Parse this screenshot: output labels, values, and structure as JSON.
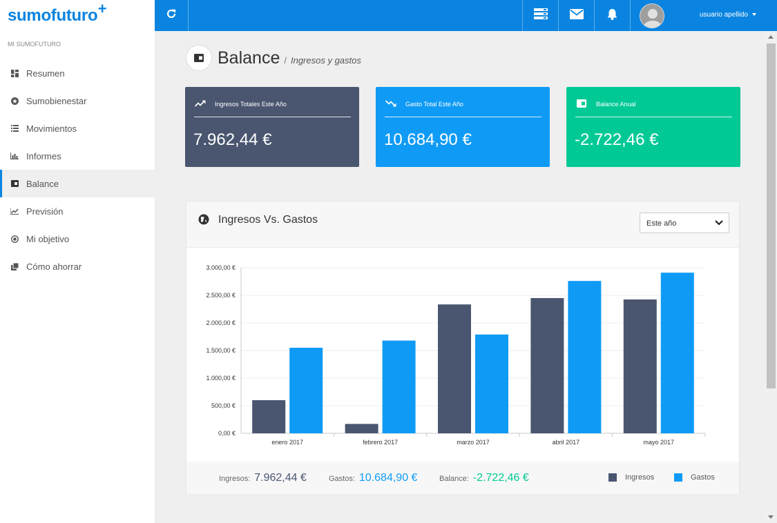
{
  "app": {
    "logo": "sumofuturo",
    "logo_plus": "+",
    "accent": "#0a84e0"
  },
  "sidebar": {
    "section_label": "MI SUMOFUTURO",
    "items": [
      {
        "label": "Resumen",
        "icon": "dashboard-icon"
      },
      {
        "label": "Sumobienestar",
        "icon": "star-circle-icon"
      },
      {
        "label": "Movimientos",
        "icon": "list-icon"
      },
      {
        "label": "Informes",
        "icon": "bar-chart-icon"
      },
      {
        "label": "Balance",
        "icon": "wallet-icon",
        "active": true
      },
      {
        "label": "Previsión",
        "icon": "line-chart-icon"
      },
      {
        "label": "Mi objetivo",
        "icon": "target-icon"
      },
      {
        "label": "Cómo ahorrar",
        "icon": "copy-icon"
      }
    ]
  },
  "topbar": {
    "user": "usuario apellido"
  },
  "page": {
    "title": "Balance",
    "separator": "/",
    "subtitle": "Ingresos y gastos"
  },
  "cards": [
    {
      "label": "Ingresos Totales Este Año",
      "value": "7.962,44 €",
      "color": "#4a5670",
      "icon": "trending-up-icon"
    },
    {
      "label": "Gasto Total Este Año",
      "value": "10.684,90 €",
      "color": "#0f9bf5",
      "icon": "trending-down-icon"
    },
    {
      "label": "Balance Anual",
      "value": "-2.722,46 €",
      "color": "#00c996",
      "icon": "wallet-icon"
    }
  ],
  "panel": {
    "title": "Ingresos Vs. Gastos",
    "select_value": "Este año"
  },
  "footer": {
    "ingresos_label": "Ingresos:",
    "ingresos_value": "7.962,44 €",
    "gastos_label": "Gastos:",
    "gastos_value": "10.684,90 €",
    "balance_label": "Balance:",
    "balance_value": "-2.722,46 €",
    "legend": [
      "Ingresos",
      "Gastos"
    ]
  },
  "chart_data": {
    "type": "bar",
    "categories": [
      "enero 2017",
      "febrero 2017",
      "marzo 2017",
      "abril 2017",
      "mayo 2017"
    ],
    "series": [
      {
        "name": "Ingresos",
        "color": "#4a5670",
        "values": [
          600,
          170,
          2335,
          2450,
          2425
        ]
      },
      {
        "name": "Gastos",
        "color": "#0f9bf5",
        "values": [
          1550,
          1680,
          1790,
          2760,
          2910
        ]
      }
    ],
    "ylim": [
      0,
      3000
    ],
    "yticks": [
      0,
      500,
      1000,
      1500,
      2000,
      2500,
      3000
    ],
    "ytick_labels": [
      "0,00 €",
      "500,00 €",
      "1.000,00 €",
      "1.500,00 €",
      "2.000,00 €",
      "2.500,00 €",
      "3.000,00 €"
    ],
    "grid": true,
    "legend": "bottom-right"
  }
}
